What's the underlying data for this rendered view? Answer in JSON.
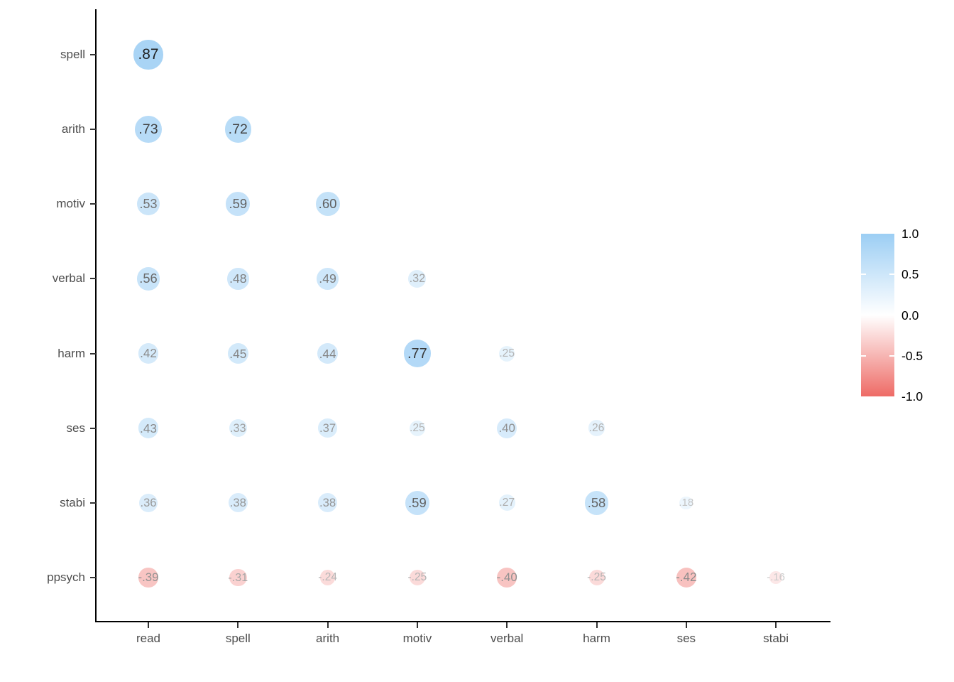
{
  "chart_data": {
    "type": "heatmap",
    "subtype": "correlation-bubble-matrix",
    "title": "",
    "xlabel": "",
    "ylabel": "",
    "x_categories": [
      "read",
      "spell",
      "arith",
      "motiv",
      "verbal",
      "harm",
      "ses",
      "stabi"
    ],
    "y_categories": [
      "spell",
      "arith",
      "motiv",
      "verbal",
      "harm",
      "ses",
      "stabi",
      "ppsych"
    ],
    "matrix": [
      [
        0.87,
        null,
        null,
        null,
        null,
        null,
        null,
        null
      ],
      [
        0.73,
        0.72,
        null,
        null,
        null,
        null,
        null,
        null
      ],
      [
        0.53,
        0.59,
        0.6,
        null,
        null,
        null,
        null,
        null
      ],
      [
        0.56,
        0.48,
        0.49,
        0.32,
        null,
        null,
        null,
        null
      ],
      [
        0.42,
        0.45,
        0.44,
        0.77,
        0.25,
        null,
        null,
        null
      ],
      [
        0.43,
        0.33,
        0.37,
        0.25,
        0.4,
        0.26,
        null,
        null
      ],
      [
        0.36,
        0.38,
        0.38,
        0.59,
        0.27,
        0.58,
        0.18,
        null
      ],
      [
        -0.39,
        -0.31,
        -0.24,
        -0.25,
        -0.4,
        -0.25,
        -0.42,
        -0.16
      ]
    ],
    "value_labels": [
      [
        ".87"
      ],
      [
        ".73",
        ".72"
      ],
      [
        ".53",
        ".59",
        ".60"
      ],
      [
        ".56",
        ".48",
        ".49",
        ".32"
      ],
      [
        ".42",
        ".45",
        ".44",
        ".77",
        ".25"
      ],
      [
        ".43",
        ".33",
        ".37",
        ".25",
        ".40",
        ".26"
      ],
      [
        ".36",
        ".38",
        ".38",
        ".59",
        ".27",
        ".58",
        ".18"
      ],
      [
        "-.39",
        "-.31",
        "-.24",
        "-.25",
        "-.40",
        "-.25",
        "-.42",
        "-.16"
      ]
    ],
    "value_range": [
      -1,
      1
    ],
    "grid": false,
    "layout_hint": "lower-triangle correlation matrix, circle area and color encode r",
    "colors": {
      "positive_max": "#9CCEF4",
      "zero": "#FFFFFF",
      "negative_max": "#EE6B66",
      "axis_text": "#4D4D4D",
      "axis_line": "#000000"
    },
    "legend": {
      "position": "right",
      "orientation": "vertical",
      "gradient": [
        "#9CCEF4",
        "#FFFFFF",
        "#EE6B66"
      ],
      "tick_values": [
        1.0,
        0.5,
        0.0,
        -0.5,
        -1.0
      ],
      "tick_labels": [
        "1.0",
        "0.5",
        "0.0",
        "-0.5",
        "-1.0"
      ]
    }
  }
}
